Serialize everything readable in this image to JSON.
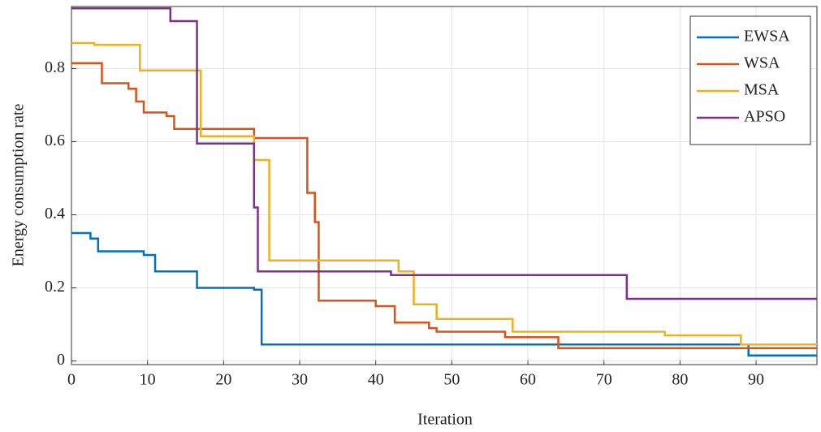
{
  "chart_data": {
    "type": "step",
    "xlabel": "Iteration",
    "ylabel": "Energy consumption rate",
    "xlim": [
      0,
      98
    ],
    "ylim": [
      -0.01,
      0.97
    ],
    "xticks": [
      0,
      10,
      20,
      30,
      40,
      50,
      60,
      70,
      80,
      90
    ],
    "yticks": [
      0,
      0.2,
      0.4,
      0.6,
      0.8
    ],
    "grid": true,
    "legend": "upper right",
    "series": [
      {
        "name": "EWSA",
        "color": "#0072bd",
        "x": [
          0,
          2.5,
          3.5,
          9.5,
          11,
          16.5,
          24,
          25,
          89,
          98
        ],
        "values": [
          0.35,
          0.335,
          0.3,
          0.29,
          0.245,
          0.2,
          0.195,
          0.045,
          0.015,
          0.015
        ]
      },
      {
        "name": "WSA",
        "color": "#d95319",
        "x": [
          0,
          4,
          7.5,
          8.5,
          9.5,
          12.5,
          13.5,
          24,
          31,
          32,
          32.5,
          40,
          42.5,
          47,
          48,
          57,
          64,
          98
        ],
        "values": [
          0.815,
          0.76,
          0.745,
          0.71,
          0.68,
          0.67,
          0.635,
          0.61,
          0.46,
          0.38,
          0.165,
          0.15,
          0.105,
          0.09,
          0.08,
          0.065,
          0.035,
          0.035
        ]
      },
      {
        "name": "MSA",
        "color": "#edb120",
        "x": [
          0,
          3,
          9,
          17,
          24,
          26,
          43,
          45,
          48,
          58,
          78,
          88,
          98
        ],
        "values": [
          0.87,
          0.865,
          0.795,
          0.615,
          0.55,
          0.275,
          0.245,
          0.155,
          0.115,
          0.08,
          0.07,
          0.045,
          0.045
        ]
      },
      {
        "name": "APSO",
        "color": "#7e2f8e",
        "x": [
          0,
          13,
          16.5,
          24,
          24.5,
          42,
          73,
          98
        ],
        "values": [
          0.965,
          0.93,
          0.595,
          0.42,
          0.245,
          0.235,
          0.17,
          0.17
        ]
      }
    ]
  }
}
